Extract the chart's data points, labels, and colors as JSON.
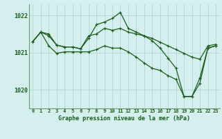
{
  "title": "Graphe pression niveau de la mer (hPa)",
  "x_labels": [
    "0",
    "1",
    "2",
    "3",
    "4",
    "5",
    "6",
    "7",
    "8",
    "9",
    "10",
    "11",
    "12",
    "13",
    "14",
    "15",
    "16",
    "17",
    "18",
    "19",
    "20",
    "21",
    "22",
    "23"
  ],
  "ylim": [
    1019.5,
    1022.3
  ],
  "yticks": [
    1020,
    1021,
    1022
  ],
  "background_color": "#d4efed",
  "grid_color": "#b0d8d4",
  "line_color": "#1a5c1a",
  "border_color": "#6a9a6a",
  "series": {
    "line1": [
      1021.3,
      1021.55,
      1021.5,
      1021.2,
      1021.15,
      1021.15,
      1021.1,
      1021.45,
      1021.5,
      1021.65,
      1021.6,
      1021.65,
      1021.55,
      1021.5,
      1021.45,
      1021.38,
      1021.28,
      1021.18,
      1021.08,
      1020.98,
      1020.88,
      1020.82,
      1021.18,
      1021.22
    ],
    "line2": [
      1021.3,
      1021.55,
      1021.45,
      1021.2,
      1021.15,
      1021.15,
      1021.1,
      1021.38,
      1021.75,
      1021.82,
      1021.92,
      1022.08,
      1021.65,
      1021.55,
      1021.45,
      1021.32,
      1021.12,
      1020.85,
      1020.58,
      1019.82,
      1019.82,
      1020.18,
      1021.12,
      1021.18
    ],
    "line3": [
      1021.3,
      1021.55,
      1021.18,
      1020.98,
      1021.02,
      1021.02,
      1021.02,
      1021.02,
      1021.08,
      1021.18,
      1021.12,
      1021.12,
      1021.02,
      1020.88,
      1020.72,
      1020.58,
      1020.52,
      1020.38,
      1020.28,
      1019.82,
      1019.82,
      1020.32,
      1021.12,
      1021.18
    ]
  },
  "marker": "+",
  "marker_size": 3,
  "line_width": 0.9,
  "tick_fontsize": 5.0,
  "label_fontsize": 6.0
}
